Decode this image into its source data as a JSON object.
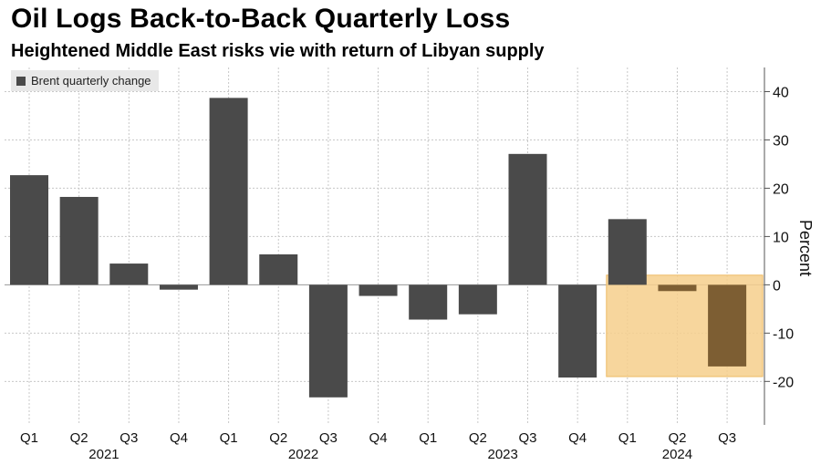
{
  "title": "Oil Logs Back-to-Back Quarterly Loss",
  "subtitle": "Heightened Middle East risks vie with return of Libyan supply",
  "chart_data": {
    "type": "bar",
    "legend": [
      "Brent quarterly change"
    ],
    "categories": [
      "Q1",
      "Q2",
      "Q3",
      "Q4",
      "Q1",
      "Q2",
      "Q3",
      "Q4",
      "Q1",
      "Q2",
      "Q3",
      "Q4",
      "Q1",
      "Q2",
      "Q3"
    ],
    "years": [
      {
        "label": "2021",
        "quarters": [
          0,
          3
        ]
      },
      {
        "label": "2022",
        "quarters": [
          4,
          7
        ]
      },
      {
        "label": "2023",
        "quarters": [
          8,
          11
        ]
      },
      {
        "label": "2024",
        "quarters": [
          12,
          14
        ]
      }
    ],
    "series": [
      {
        "name": "Brent quarterly change",
        "values": [
          22.7,
          18.2,
          4.4,
          -1.0,
          38.7,
          6.3,
          -23.3,
          -2.3,
          -7.2,
          -6.1,
          27.1,
          -19.2,
          13.6,
          -1.3,
          -16.9
        ]
      }
    ],
    "highlight": {
      "from_index": 12,
      "to_index": 14,
      "ymin": -19,
      "ymax": 2
    },
    "ylabel": "Percent",
    "ylim": [
      -29,
      45
    ],
    "yticks": [
      40,
      30,
      20,
      10,
      0,
      -10,
      -20
    ],
    "colors": {
      "bar": "#4a4a4a",
      "bar_highlight": "#7d5e33",
      "highlight": "#f6cf8c",
      "grid": "#c8c8c8"
    }
  }
}
